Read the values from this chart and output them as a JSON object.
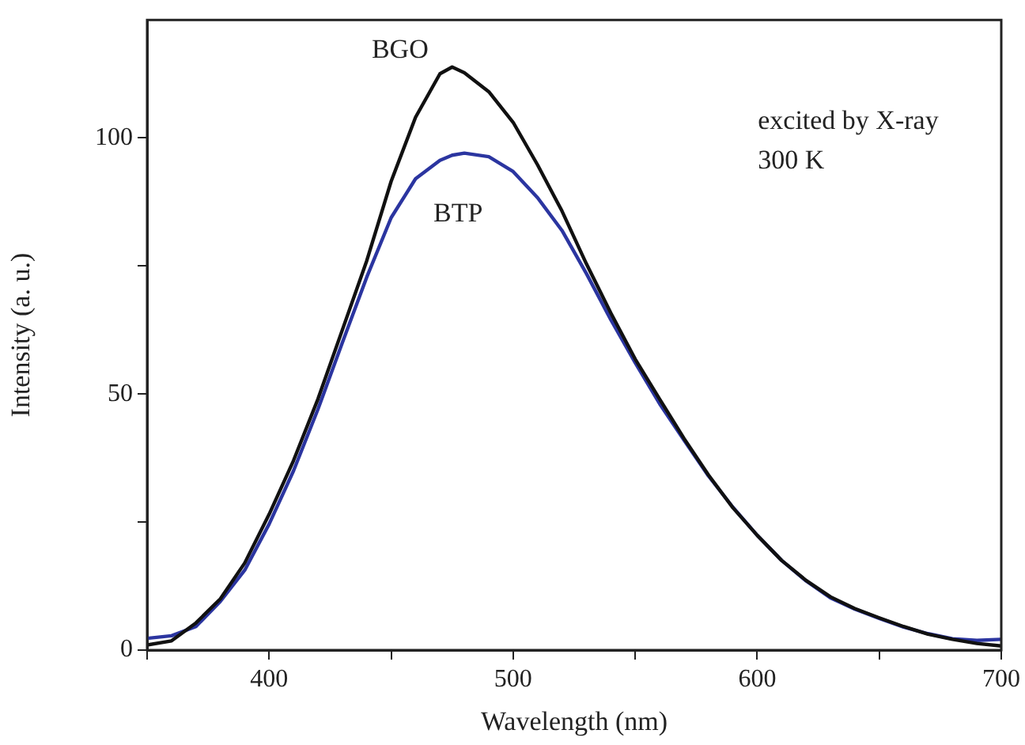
{
  "chart_data": {
    "type": "line",
    "xlabel": "Wavelength (nm)",
    "ylabel": "Intensity (a. u.)",
    "annotations": [
      "excited by X-ray",
      "300 K"
    ],
    "x": [
      350,
      360,
      370,
      380,
      390,
      400,
      410,
      420,
      430,
      440,
      450,
      460,
      470,
      475,
      480,
      490,
      500,
      510,
      520,
      530,
      540,
      550,
      560,
      570,
      580,
      590,
      600,
      610,
      620,
      630,
      640,
      650,
      660,
      670,
      680,
      690,
      700
    ],
    "series": [
      {
        "name": "BGO",
        "color": "#111111",
        "values": [
          1,
          1.8,
          5.3,
          10,
          17,
          26.5,
          37,
          49,
          62.5,
          76,
          91.5,
          104,
          112.5,
          113.8,
          112.7,
          109,
          103,
          94.7,
          85.7,
          75.4,
          65.8,
          56.8,
          49,
          41.3,
          34.2,
          27.8,
          22.4,
          17.5,
          13.6,
          10.4,
          8.1,
          6.3,
          4.6,
          3.1,
          2.1,
          1.3,
          0.8
        ]
      },
      {
        "name": "BTP",
        "color": "#2b35a0",
        "values": [
          2.3,
          2.8,
          4.6,
          9.5,
          15.6,
          24.6,
          35,
          47,
          60,
          72.8,
          84.4,
          92,
          95.6,
          96.6,
          97,
          96.3,
          93.4,
          88.3,
          81.9,
          73.5,
          64.5,
          56.1,
          48.1,
          41,
          34,
          27.9,
          22.4,
          17.5,
          13.5,
          10.2,
          8,
          6.2,
          4.5,
          3.2,
          2.2,
          1.9,
          2.1
        ]
      }
    ],
    "xlim": [
      350,
      700
    ],
    "xticks": [
      {
        "value": 350,
        "label": null
      },
      400,
      {
        "value": 450,
        "label": null
      },
      500,
      {
        "value": 550,
        "label": null
      },
      600,
      {
        "value": 650,
        "label": null
      },
      700
    ],
    "ylim": [
      0,
      123
    ],
    "yticks": [
      0,
      {
        "value": 25,
        "label": null
      },
      50,
      {
        "value": 75,
        "label": null
      },
      100
    ],
    "grid": false,
    "legend": false,
    "marker": "none",
    "line_style": "solid"
  }
}
